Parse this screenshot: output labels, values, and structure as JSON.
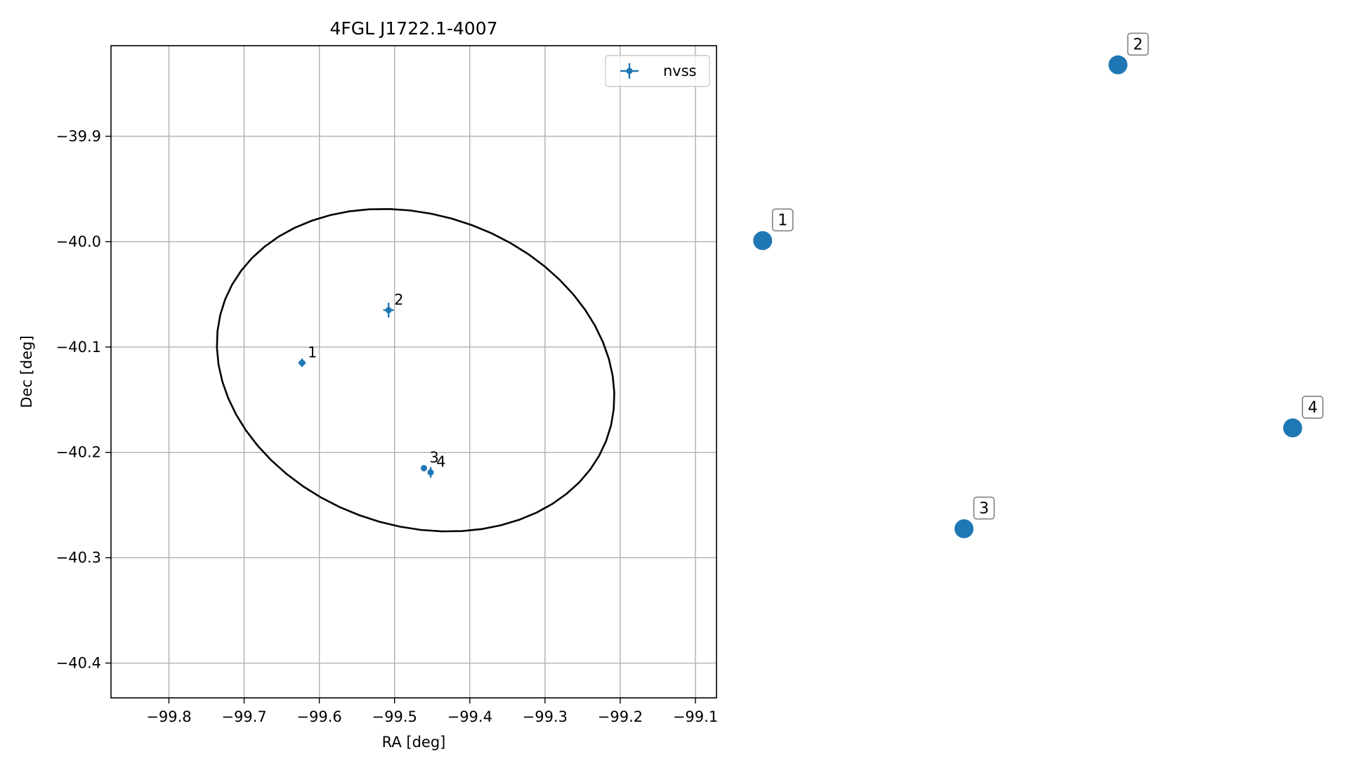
{
  "chart_data": [
    {
      "type": "scatter",
      "title": "4FGL J1722.1-4007",
      "xlabel": "RA [deg]",
      "ylabel": "Dec [deg]",
      "xlim": [
        -99.877,
        -99.072
      ],
      "ylim": [
        -40.433,
        -39.814
      ],
      "xticks": [
        -99.8,
        -99.7,
        -99.6,
        -99.5,
        -99.4,
        -99.3,
        -99.2,
        -99.1
      ],
      "xtick_labels": [
        "−99.8",
        "−99.7",
        "−99.6",
        "−99.5",
        "−99.4",
        "−99.3",
        "−99.2",
        "−99.1"
      ],
      "yticks": [
        -39.9,
        -40.0,
        -40.1,
        -40.2,
        -40.3,
        -40.4
      ],
      "ytick_labels": [
        "−39.9",
        "−40.0",
        "−40.1",
        "−40.2",
        "−40.3",
        "−40.4"
      ],
      "grid": true,
      "legend": {
        "position": "top-right",
        "entries": [
          "nvss"
        ]
      },
      "series": [
        {
          "name": "nvss",
          "color": "#1f77b4",
          "points": [
            {
              "label": "1",
              "x": -99.623,
              "y": -40.115,
              "xerr": 0.005,
              "yerr": 0.004
            },
            {
              "label": "2",
              "x": -99.508,
              "y": -40.065,
              "xerr": 0.007,
              "yerr": 0.007
            },
            {
              "label": "3",
              "x": -99.461,
              "y": -40.215,
              "xerr": 0.003,
              "yerr": 0.003
            },
            {
              "label": "4",
              "x": -99.452,
              "y": -40.219,
              "xerr": 0.004,
              "yerr": 0.005
            }
          ]
        }
      ],
      "ellipse": {
        "color": "#000000",
        "center": [
          -99.472,
          -40.122
        ],
        "semi_axes": [
          0.266,
          0.15
        ],
        "tilt_deg": -8
      }
    },
    {
      "type": "scatter",
      "grid": false,
      "axes_visible": false,
      "color": "#1f77b4",
      "points": [
        {
          "label": "1",
          "x": 0.04,
          "y": 0.68
        },
        {
          "label": "2",
          "x": 0.64,
          "y": 0.985
        },
        {
          "label": "3",
          "x": 0.38,
          "y": 0.18
        },
        {
          "label": "4",
          "x": 0.935,
          "y": 0.355
        }
      ]
    }
  ]
}
